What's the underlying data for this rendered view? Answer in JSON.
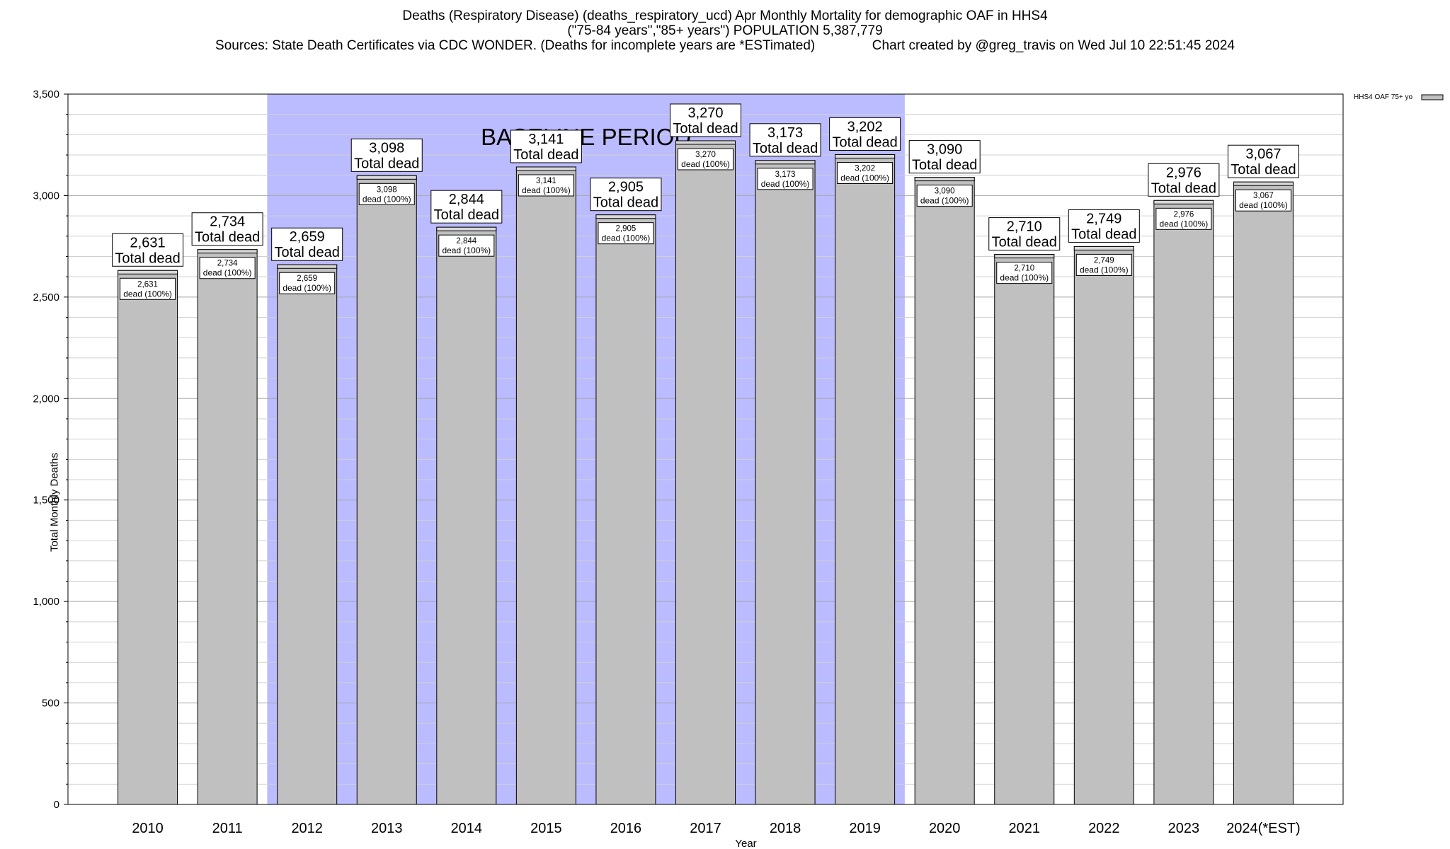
{
  "chart_data": {
    "type": "bar",
    "title": "Deaths (Respiratory Disease) (deaths_respiratory_ucd) Apr Monthly Mortality for demographic OAF in HHS4",
    "subtitle": "(\"75-84 years\",\"85+ years\") POPULATION 5,387,779",
    "sources": "Sources: State Death Certificates via CDC WONDER. (Deaths for incomplete years are *ESTimated)",
    "credit": "Chart created by @greg_travis on Wed Jul 10 22:51:45 2024",
    "xlabel": "Year",
    "ylabel": "Total Monthly Deaths",
    "ylim": [
      0,
      3500
    ],
    "yticks": [
      0,
      500,
      1000,
      1500,
      2000,
      2500,
      3000,
      3500
    ],
    "ytick_labels": [
      "0",
      "500",
      "1,000",
      "1,500",
      "2,000",
      "2,500",
      "3,000",
      "3,500"
    ],
    "categories": [
      "2010",
      "2011",
      "2012",
      "2013",
      "2014",
      "2015",
      "2016",
      "2017",
      "2018",
      "2019",
      "2020",
      "2021",
      "2022",
      "2023",
      "2024(*EST)"
    ],
    "series": [
      {
        "name": "HHS4 OAF 75+ yo",
        "values": [
          2631,
          2734,
          2659,
          3098,
          2844,
          3141,
          2905,
          3270,
          3173,
          3202,
          3090,
          2710,
          2749,
          2976,
          3067
        ]
      }
    ],
    "value_labels": [
      "2,631",
      "2,734",
      "2,659",
      "3,098",
      "2,844",
      "3,141",
      "2,905",
      "3,270",
      "3,173",
      "3,202",
      "3,090",
      "2,710",
      "2,749",
      "2,976",
      "3,067"
    ],
    "total_label": "Total dead",
    "inner_label": "dead (100%)",
    "baseline": {
      "label": "BASELINE PERIOD",
      "from": "2012",
      "to": "2019",
      "color": "#bbbbff"
    },
    "bar_color": "#c0c0c0",
    "grid": true,
    "legend_position": "top-right"
  }
}
